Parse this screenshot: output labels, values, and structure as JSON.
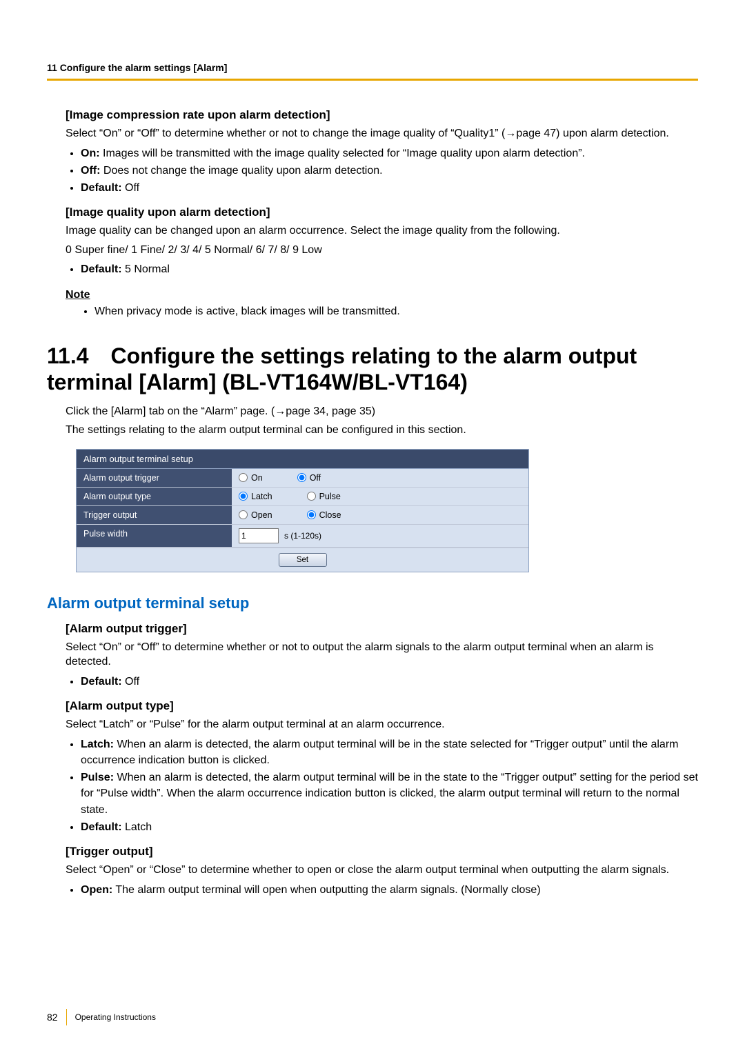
{
  "colors": {
    "accent_rule": "#e8a600",
    "panel_header_bg": "#3a4a6a",
    "panel_label_bg": "#405071",
    "panel_value_bg": "#d7e1f0",
    "panel_border": "#8fa3c3",
    "link_blue": "#0066c0"
  },
  "running_head": "11 Configure the alarm settings [Alarm]",
  "section_a": {
    "h_compression": "[Image compression rate upon alarm detection]",
    "compression_text": "Select “On” or “Off” to determine whether or not to change the image quality of “Quality1” (→page 47) upon alarm detection.",
    "bul_on_label": "On:",
    "bul_on_text": " Images will be transmitted with the image quality selected for “Image quality upon alarm detection”.",
    "bul_off_label": "Off:",
    "bul_off_text": " Does not change the image quality upon alarm detection.",
    "bul_def_label": "Default:",
    "bul_def_text": " Off",
    "h_quality": "[Image quality upon alarm detection]",
    "quality_text_1": "Image quality can be changed upon an alarm occurrence. Select the image quality from the following.",
    "quality_text_2": "0 Super fine/ 1 Fine/ 2/ 3/ 4/ 5 Normal/ 6/ 7/ 8/ 9 Low",
    "bul_def2_label": "Default:",
    "bul_def2_text": " 5 Normal",
    "note_head": "Note",
    "note_bullet": "When privacy mode is active, black images will be transmitted."
  },
  "section_title": "11.4 Configure the settings relating to the alarm output terminal [Alarm] (BL-VT164W/BL-VT164)",
  "section_intro_1": "Click the [Alarm] tab on the “Alarm” page. (→page 34, page 35)",
  "section_intro_2": "The settings relating to the alarm output terminal can be configured in this section.",
  "panel": {
    "header": "Alarm output terminal setup",
    "rows": {
      "trigger": {
        "label": "Alarm output trigger",
        "opt1": "On",
        "opt2": "Off",
        "selected": "Off"
      },
      "type": {
        "label": "Alarm output type",
        "opt1": "Latch",
        "opt2": "Pulse",
        "selected": "Latch"
      },
      "triggerout": {
        "label": "Trigger output",
        "opt1": "Open",
        "opt2": "Close",
        "selected": "Close"
      },
      "pulse": {
        "label": "Pulse width",
        "value": "1",
        "unit": "s (1-120s)"
      }
    },
    "set_btn": "Set"
  },
  "blue_heading": "Alarm output terminal setup",
  "section_b": {
    "h_trigger": "[Alarm output trigger]",
    "trigger_text": "Select “On” or “Off” to determine whether or not to output the alarm signals to the alarm output terminal when an alarm is detected.",
    "trigger_def_label": "Default:",
    "trigger_def_text": " Off",
    "h_type": "[Alarm output type]",
    "type_text": "Select “Latch” or “Pulse” for the alarm output terminal at an alarm occurrence.",
    "latch_label": "Latch:",
    "latch_text": " When an alarm is detected, the alarm output terminal will be in the state selected for “Trigger output” until the alarm occurrence indication button is clicked.",
    "pulse_label": "Pulse:",
    "pulse_text": " When an alarm is detected, the alarm output terminal will be in the state to the “Trigger output” setting for the period set for “Pulse width”. When the alarm occurrence indication button is clicked, the alarm output terminal will return to the normal state.",
    "type_def_label": "Default:",
    "type_def_text": " Latch",
    "h_triggerout": "[Trigger output]",
    "triggerout_text": "Select “Open” or “Close” to determine whether to open or close the alarm output terminal when outputting the alarm signals.",
    "open_label": "Open:",
    "open_text": " The alarm output terminal will open when outputting the alarm signals. (Normally close)"
  },
  "footer": {
    "page_num": "82",
    "doc_title": "Operating Instructions"
  }
}
